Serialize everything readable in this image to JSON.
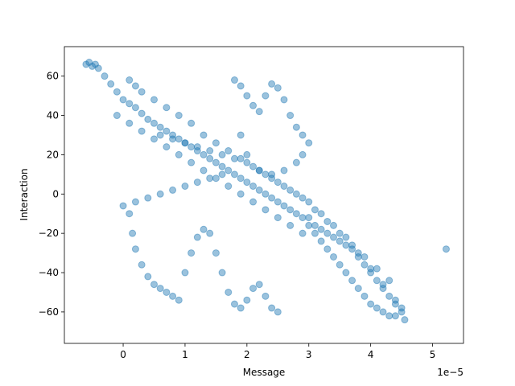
{
  "chart_data": {
    "type": "scatter",
    "title": "",
    "xlabel": "Message",
    "ylabel": "Interaction",
    "x_offset_text": "1e−5",
    "x_scale_factor": 1e-05,
    "xlim": [
      -0.95,
      5.5
    ],
    "ylim": [
      -76,
      75
    ],
    "x_ticks": [
      {
        "value": 0,
        "label": "0"
      },
      {
        "value": 1,
        "label": "1"
      },
      {
        "value": 2,
        "label": "2"
      },
      {
        "value": 3,
        "label": "3"
      },
      {
        "value": 4,
        "label": "4"
      },
      {
        "value": 5,
        "label": "5"
      }
    ],
    "y_ticks": [
      {
        "value": -60,
        "label": "−60"
      },
      {
        "value": -40,
        "label": "−40"
      },
      {
        "value": -20,
        "label": "−20"
      },
      {
        "value": 0,
        "label": "0"
      },
      {
        "value": 20,
        "label": "20"
      },
      {
        "value": 40,
        "label": "40"
      },
      {
        "value": 60,
        "label": "60"
      }
    ],
    "grid": false,
    "legend": "none",
    "marker_color": "#1f77b4",
    "marker_alpha": 0.45,
    "series": [
      {
        "x": [
          -0.6,
          -0.55,
          -0.5,
          -0.45,
          -0.4,
          -0.3,
          -0.2,
          -0.1,
          0.0,
          0.1,
          0.2,
          0.3,
          0.4,
          0.5,
          0.6,
          0.7,
          0.8,
          0.9,
          1.0,
          1.1,
          1.2,
          1.3,
          1.4,
          1.5,
          1.6,
          1.7,
          1.8,
          1.9,
          2.0,
          2.1,
          2.2,
          2.3,
          2.4,
          2.5,
          2.6,
          2.7,
          2.8,
          2.9,
          3.0,
          3.1,
          3.2,
          3.3,
          3.4,
          3.5,
          3.6,
          3.7,
          3.8,
          3.9,
          4.0,
          4.1,
          4.2,
          4.3,
          4.4,
          4.5,
          0.1,
          0.2,
          0.3,
          0.5,
          0.7,
          0.9,
          1.1,
          1.3,
          1.5,
          1.7,
          1.9,
          2.1,
          2.3,
          2.5,
          2.7,
          2.9,
          3.1,
          3.3,
          3.5,
          3.7,
          3.9,
          4.1,
          4.3,
          -0.1,
          0.1,
          0.3,
          0.5,
          0.7,
          0.9,
          1.1,
          1.3,
          1.5,
          1.7,
          1.9,
          2.1,
          2.3,
          2.5,
          2.7,
          2.9,
          0.6,
          0.8,
          1.0,
          1.2,
          1.4,
          1.6,
          1.8,
          2.0,
          2.2,
          2.4,
          2.6,
          2.8,
          3.0,
          3.2,
          3.4,
          3.6,
          3.8,
          4.0,
          4.2,
          4.4,
          1.8,
          1.9,
          2.0,
          2.1,
          2.2,
          2.3,
          2.4,
          2.5,
          2.6,
          2.7,
          2.8,
          2.9,
          3.0,
          2.9,
          2.8,
          2.6,
          2.4,
          2.2,
          2.0,
          1.9,
          0.1,
          0.15,
          0.2,
          0.3,
          0.4,
          0.5,
          0.6,
          0.7,
          0.8,
          0.9,
          1.0,
          1.1,
          1.2,
          1.3,
          1.4,
          1.5,
          1.6,
          1.7,
          1.8,
          1.9,
          2.0,
          2.1,
          2.2,
          2.3,
          2.4,
          2.5,
          3.0,
          3.1,
          3.2,
          3.3,
          3.4,
          3.5,
          3.6,
          3.7,
          3.8,
          3.9,
          4.0,
          4.1,
          4.2,
          4.3,
          4.4,
          4.5,
          4.55,
          0.0,
          0.2,
          0.4,
          0.6,
          0.8,
          1.0,
          1.2,
          1.4,
          1.6,
          5.22
        ],
        "y": [
          66,
          67,
          65,
          66,
          64,
          60,
          56,
          52,
          48,
          46,
          44,
          41,
          38,
          36,
          34,
          32,
          30,
          28,
          26,
          24,
          22,
          20,
          18,
          16,
          14,
          12,
          10,
          8,
          6,
          4,
          2,
          0,
          -2,
          -4,
          -6,
          -8,
          -10,
          -12,
          -16,
          -20,
          -24,
          -28,
          -32,
          -36,
          -40,
          -44,
          -48,
          -52,
          -56,
          -58,
          -60,
          -62,
          -62,
          -58,
          58,
          55,
          52,
          48,
          44,
          40,
          36,
          30,
          26,
          22,
          18,
          14,
          10,
          6,
          2,
          -2,
          -8,
          -14,
          -20,
          -26,
          -32,
          -38,
          -44,
          40,
          36,
          32,
          28,
          24,
          20,
          16,
          12,
          8,
          4,
          0,
          -4,
          -8,
          -12,
          -16,
          -20,
          30,
          28,
          26,
          24,
          22,
          20,
          18,
          16,
          12,
          8,
          4,
          0,
          -4,
          -10,
          -16,
          -22,
          -30,
          -38,
          -46,
          -54,
          58,
          55,
          50,
          45,
          42,
          50,
          56,
          54,
          48,
          40,
          34,
          30,
          26,
          20,
          16,
          12,
          10,
          12,
          20,
          30,
          -10,
          -20,
          -28,
          -36,
          -42,
          -46,
          -48,
          -50,
          -52,
          -54,
          -40,
          -30,
          -22,
          -18,
          -20,
          -30,
          -40,
          -50,
          -56,
          -58,
          -54,
          -48,
          -46,
          -52,
          -58,
          -60,
          -12,
          -16,
          -18,
          -20,
          -22,
          -24,
          -26,
          -28,
          -32,
          -36,
          -40,
          -44,
          -48,
          -52,
          -56,
          -60,
          -64,
          -6,
          -4,
          -2,
          0,
          2,
          4,
          6,
          8,
          10,
          -28
        ]
      }
    ]
  }
}
